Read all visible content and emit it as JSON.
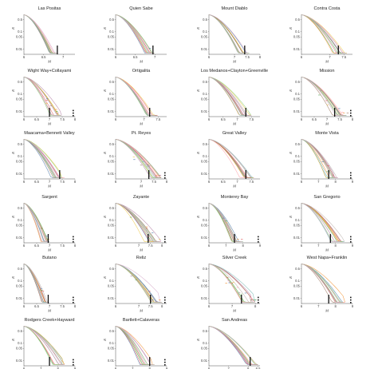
{
  "chart_data": {
    "type": "line",
    "xlabel": "M",
    "ylabel": "R",
    "yticks": [
      "0.5",
      "0.1",
      "0.05",
      "0.01"
    ],
    "series_colors": [
      "#4e79a7",
      "#e15759",
      "#59a14f",
      "#f28e2b",
      "#edc948",
      "#b07aa1",
      "#ff9da7",
      "#9c755f",
      "#76b7b2",
      "#8cd17d",
      "#d4a6c8",
      "#bab0ac"
    ],
    "panels": [
      {
        "title": "Las Positas",
        "xticks": [
          "6",
          "6.5",
          "7"
        ],
        "xlim": [
          6.0,
          7.3
        ],
        "mmax": 6.85,
        "bars": [
          6.85
        ],
        "stars": 0,
        "spread": 0.1,
        "scatter": 0.0
      },
      {
        "title": "Quien Sabe",
        "xticks": [
          "6",
          "6.5",
          "7"
        ],
        "xlim": [
          6.0,
          7.3
        ],
        "mmax": 7.0,
        "bars": [
          6.95
        ],
        "stars": 0,
        "spread": 0.15,
        "scatter": 0.05
      },
      {
        "title": "Mount Diablo",
        "xticks": [
          "6",
          "7",
          "7.5",
          "8"
        ],
        "xlim": [
          6.0,
          8.0
        ],
        "mmax": 7.6,
        "bars": [
          7.4
        ],
        "stars": 0,
        "spread": 0.35,
        "scatter": 0.0
      },
      {
        "title": "Contra Costa",
        "xticks": [
          "6",
          "7",
          "7.5"
        ],
        "xlim": [
          6.0,
          7.8
        ],
        "mmax": 7.6,
        "bars": [
          7.3
        ],
        "stars": 0,
        "spread": 0.25,
        "scatter": 0.0
      },
      {
        "title": "Wight Way+Collayami",
        "xticks": [
          "6",
          "6.5",
          "7",
          "7.5",
          "8"
        ],
        "xlim": [
          6.0,
          8.0
        ],
        "mmax": 7.5,
        "bars": [
          7.0
        ],
        "stars": 3,
        "spread": 0.3,
        "scatter": 0.3
      },
      {
        "title": "Ortigalita",
        "xticks": [
          "6",
          "7",
          "7.5"
        ],
        "xlim": [
          6.0,
          7.8
        ],
        "mmax": 7.5,
        "bars": [
          7.2
        ],
        "stars": 0,
        "spread": 0.3,
        "scatter": 0.0
      },
      {
        "title": "Los Medanos+Clayton+Greenville",
        "xticks": [
          "6",
          "6.5",
          "7",
          "7.5"
        ],
        "xlim": [
          6.0,
          7.8
        ],
        "mmax": 7.5,
        "bars": [
          7.3
        ],
        "stars": 0,
        "spread": 0.2,
        "scatter": 0.0
      },
      {
        "title": "Mission",
        "xticks": [
          "6",
          "6.5",
          "7",
          "7.5",
          "8"
        ],
        "xlim": [
          6.0,
          8.0
        ],
        "mmax": 7.8,
        "bars": [
          7.3
        ],
        "stars": 3,
        "spread": 0.3,
        "scatter": 0.3
      },
      {
        "title": "Maacama+Bennett Valley",
        "xticks": [
          "6",
          "6.5",
          "7",
          "7.5",
          "8"
        ],
        "xlim": [
          6.0,
          8.0
        ],
        "mmax": 7.6,
        "bars": [
          7.4
        ],
        "stars": 0,
        "spread": 0.3,
        "scatter": 0.0
      },
      {
        "title": "Pt. Reyes",
        "xticks": [
          "6",
          "7",
          "7.5",
          "8"
        ],
        "xlim": [
          6.0,
          8.0
        ],
        "mmax": 7.8,
        "bars": [
          7.3
        ],
        "stars": 3,
        "spread": 0.3,
        "scatter": 0.5
      },
      {
        "title": "Great Valley",
        "xticks": [
          "6",
          "6.5",
          "7",
          "7.5"
        ],
        "xlim": [
          6.0,
          7.8
        ],
        "mmax": 7.6,
        "bars": [
          7.3
        ],
        "stars": 0,
        "spread": 0.2,
        "scatter": 0.0
      },
      {
        "title": "Monte Vista",
        "xticks": [
          "6",
          "7",
          "8",
          "9"
        ],
        "xlim": [
          6.0,
          9.0
        ],
        "mmax": 8.2,
        "bars": [
          7.6
        ],
        "stars": 3,
        "spread": 0.55,
        "scatter": 0.1
      },
      {
        "title": "Sargent",
        "xticks": [
          "6",
          "6.5",
          "7",
          "7.5",
          "8"
        ],
        "xlim": [
          6.0,
          8.0
        ],
        "mmax": 7.0,
        "bars": [
          6.95
        ],
        "stars": 3,
        "spread": 0.25,
        "scatter": 0.15
      },
      {
        "title": "Zayante",
        "xticks": [
          "6",
          "7",
          "7.5",
          "8"
        ],
        "xlim": [
          6.0,
          8.2
        ],
        "mmax": 8.0,
        "bars": [
          7.4
        ],
        "stars": 3,
        "spread": 0.5,
        "scatter": 0.2
      },
      {
        "title": "Monterey Bay",
        "xticks": [
          "6",
          "7",
          "8",
          "9"
        ],
        "xlim": [
          6.0,
          9.0
        ],
        "mmax": 8.0,
        "bars": [
          7.5
        ],
        "stars": 3,
        "spread": 0.4,
        "scatter": 0.2
      },
      {
        "title": "San Gregorio",
        "xticks": [
          "6",
          "7",
          "8",
          "9"
        ],
        "xlim": [
          6.0,
          9.0
        ],
        "mmax": 8.6,
        "bars": [
          7.7
        ],
        "stars": 3,
        "spread": 0.55,
        "scatter": 0.0
      },
      {
        "title": "Butano",
        "xticks": [
          "6",
          "6.5",
          "7",
          "7.5",
          "8"
        ],
        "xlim": [
          6.0,
          8.0
        ],
        "mmax": 7.0,
        "bars": [
          6.95
        ],
        "stars": 3,
        "spread": 0.2,
        "scatter": 0.1
      },
      {
        "title": "Reliz",
        "xticks": [
          "6",
          "7",
          "7.5",
          "8"
        ],
        "xlim": [
          6.0,
          8.2
        ],
        "mmax": 8.0,
        "bars": [
          7.5
        ],
        "stars": 3,
        "spread": 0.5,
        "scatter": 0.25
      },
      {
        "title": "Silver Creek",
        "xticks": [
          "6",
          "7",
          "8"
        ],
        "xlim": [
          6.0,
          8.2
        ],
        "mmax": 8.0,
        "bars": [
          7.4
        ],
        "stars": 3,
        "spread": 0.4,
        "scatter": 0.6
      },
      {
        "title": "West Napa+Franklin",
        "xticks": [
          "6",
          "7",
          "8",
          "9"
        ],
        "xlim": [
          6.0,
          9.0
        ],
        "mmax": 8.6,
        "bars": [
          7.6
        ],
        "stars": 3,
        "spread": 0.4,
        "scatter": 0.0
      },
      {
        "title": "Rodgers Creek+Hayward",
        "xticks": [
          "6",
          "7",
          "8",
          "9"
        ],
        "xlim": [
          6.0,
          9.0
        ],
        "mmax": 8.4,
        "bars": [
          7.5
        ],
        "stars": 3,
        "spread": 0.45,
        "scatter": 0.0
      },
      {
        "title": "Bartlett+Calaveras",
        "xticks": [
          "6",
          "7",
          "8",
          "9"
        ],
        "xlim": [
          6.0,
          9.0
        ],
        "mmax": 8.3,
        "bars": [
          8.0
        ],
        "stars": 3,
        "spread": 0.45,
        "scatter": 0.0
      },
      {
        "title": "San Andreas",
        "xticks": [
          "6",
          "7",
          "8",
          "8.5"
        ],
        "xlim": [
          6.0,
          8.6
        ],
        "mmax": 8.5,
        "bars": [
          8.1
        ],
        "stars": 0,
        "spread": 0.15,
        "scatter": 0.0
      }
    ]
  }
}
